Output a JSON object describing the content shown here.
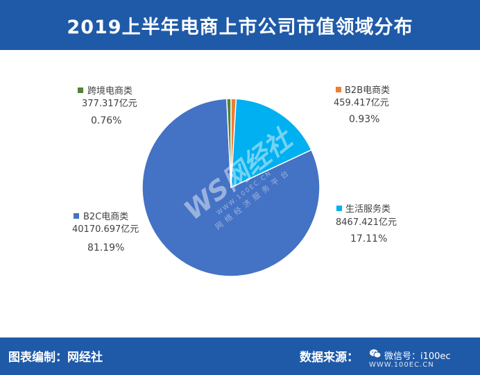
{
  "header": {
    "title": "2019上半年电商上市公司市值领域分布"
  },
  "footer": {
    "compiler": "图表编制：网经社",
    "source": "数据来源：",
    "wechat": "微信号：i100ec",
    "site": "WWW.100EC.CN"
  },
  "watermark": {
    "logo": "WS网经社",
    "url": "WWW.100EC.CN",
    "tagline": "网络经济服务平台"
  },
  "colors": {
    "header_bg": "#1f5aa8",
    "b2c": "#4472c4",
    "service": "#00b0f0",
    "b2b": "#ed7d31",
    "crossborder": "#548235"
  },
  "chart_data": {
    "type": "pie",
    "title": "2019上半年电商上市公司市值领域分布",
    "unit": "亿元",
    "slices": [
      {
        "name": "B2B电商类",
        "value": 459.417,
        "value_label": "459.417亿元",
        "percent": 0.93,
        "percent_label": "0.93%",
        "color": "#ed7d31"
      },
      {
        "name": "生活服务类",
        "value": 8467.421,
        "value_label": "8467.421亿元",
        "percent": 17.11,
        "percent_label": "17.11%",
        "color": "#00b0f0"
      },
      {
        "name": "B2C电商类",
        "value": 40170.697,
        "value_label": "40170.697亿元",
        "percent": 81.19,
        "percent_label": "81.19%",
        "color": "#4472c4"
      },
      {
        "name": "跨境电商类",
        "value": 377.317,
        "value_label": "377.317亿元",
        "percent": 0.76,
        "percent_label": "0.76%",
        "color": "#548235"
      }
    ]
  }
}
